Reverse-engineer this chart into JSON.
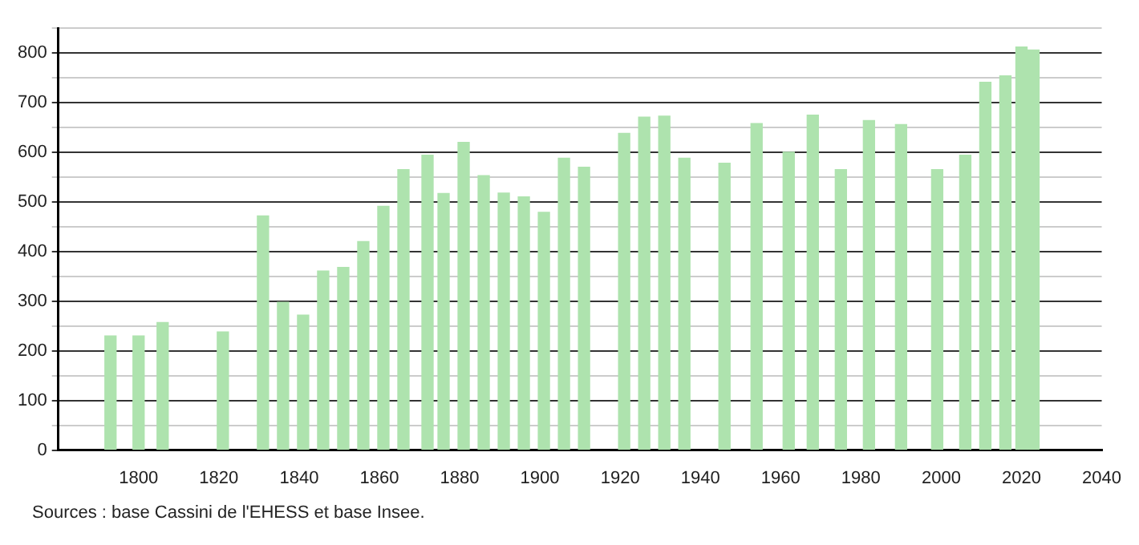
{
  "chart_data": {
    "type": "bar",
    "x": [
      1793,
      1800,
      1806,
      1821,
      1831,
      1836,
      1841,
      1846,
      1851,
      1856,
      1861,
      1866,
      1872,
      1876,
      1881,
      1886,
      1891,
      1896,
      1901,
      1906,
      1911,
      1921,
      1926,
      1931,
      1936,
      1946,
      1954,
      1962,
      1968,
      1975,
      1982,
      1990,
      1999,
      2006,
      2011,
      2016,
      2020,
      2023
    ],
    "values": [
      230,
      230,
      257,
      238,
      472,
      298,
      272,
      361,
      368,
      420,
      491,
      565,
      594,
      517,
      620,
      553,
      518,
      510,
      479,
      588,
      570,
      638,
      671,
      673,
      588,
      578,
      658,
      600,
      675,
      565,
      664,
      656,
      565,
      594,
      741,
      754,
      812,
      806
    ],
    "color": "#aee3ae",
    "xlim": [
      1780,
      2040
    ],
    "xticks": [
      1800,
      1820,
      1840,
      1860,
      1880,
      1900,
      1920,
      1940,
      1960,
      1980,
      2000,
      2020,
      2040
    ],
    "ylim": [
      0,
      850
    ],
    "yticks": [
      0,
      {
        "value": 50,
        "label": null
      },
      100,
      {
        "value": 150,
        "label": null
      },
      200,
      {
        "value": 250,
        "label": null
      },
      300,
      {
        "value": 350,
        "label": null
      },
      400,
      {
        "value": 450,
        "label": null
      },
      500,
      {
        "value": 550,
        "label": null
      },
      600,
      {
        "value": 650,
        "label": null
      },
      700,
      {
        "value": 750,
        "label": null
      },
      800,
      {
        "value": 850,
        "label": null
      }
    ],
    "grid": "y",
    "legend": false,
    "annotations": [
      "Sources : base Cassini de l'EHESS et base Insee."
    ]
  }
}
